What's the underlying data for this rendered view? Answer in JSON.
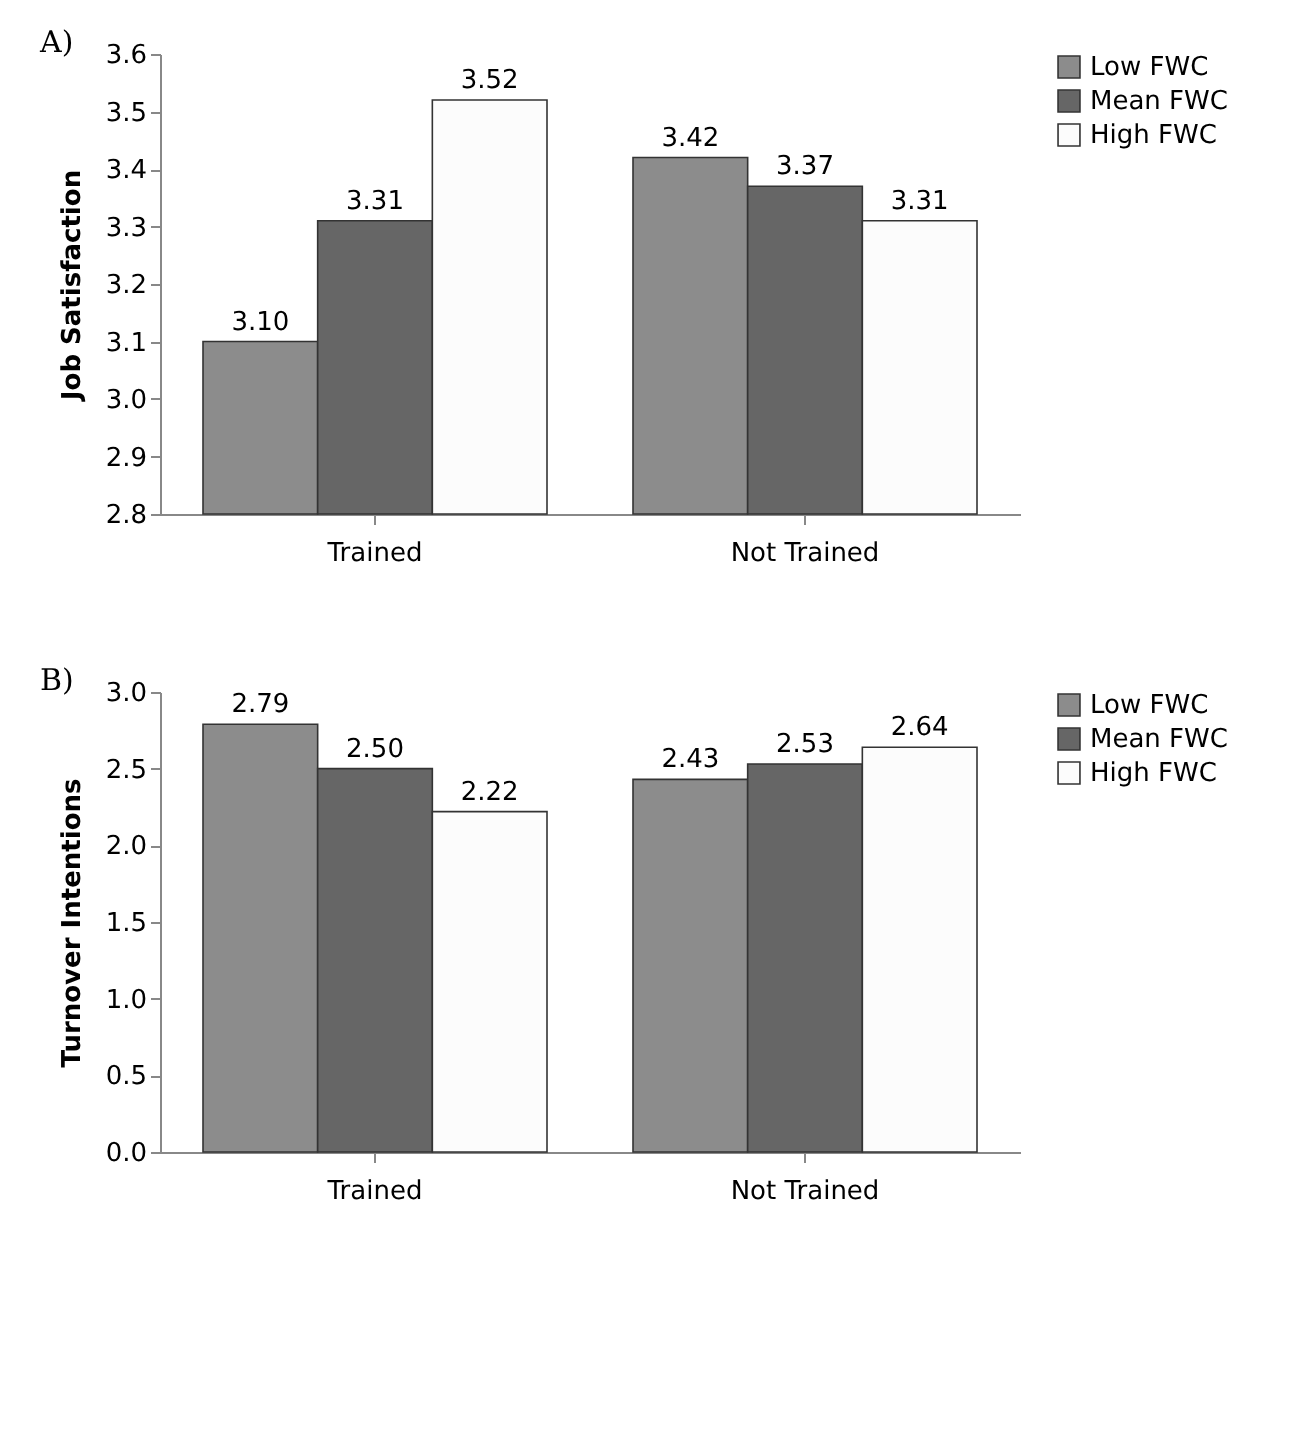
{
  "chart_data": [
    {
      "type": "bar",
      "title": "A)",
      "ylabel": "Job Satisfaction",
      "categories": [
        "Trained",
        "Not Trained"
      ],
      "ylim": [
        2.8,
        3.6
      ],
      "yticks": [
        2.8,
        2.9,
        {
          "value": 3,
          "label": "3.0"
        },
        3.1,
        3.2,
        3.3,
        3.4,
        3.5,
        3.6
      ],
      "legend": "right",
      "series": [
        {
          "name": "Low FWC",
          "color": "#8c8c8c",
          "values": [
            3.1,
            3.42
          ],
          "value_labels": [
            "3.10",
            "3.42"
          ]
        },
        {
          "name": "Mean FWC",
          "color": "#666666",
          "values": [
            3.31,
            3.37
          ],
          "value_labels": [
            "3.31",
            "3.37"
          ]
        },
        {
          "name": "High FWC",
          "color": "#fcfcfc",
          "values": [
            3.52,
            3.31
          ],
          "value_labels": [
            "3.52",
            "3.31"
          ]
        }
      ]
    },
    {
      "type": "bar",
      "title": "B)",
      "ylabel": "Turnover Intentions",
      "categories": [
        "Trained",
        "Not Trained"
      ],
      "ylim": [
        0,
        3
      ],
      "yticks": [
        {
          "value": 0,
          "label": "0.0"
        },
        0.5,
        {
          "value": 1,
          "label": "1.0"
        },
        1.5,
        {
          "value": 2,
          "label": "2.0"
        },
        2.5,
        {
          "value": 3,
          "label": "3.0"
        }
      ],
      "legend": "right",
      "series": [
        {
          "name": "Low FWC",
          "color": "#8c8c8c",
          "values": [
            2.79,
            2.43
          ],
          "value_labels": [
            "2.79",
            "2.43"
          ]
        },
        {
          "name": "Mean FWC",
          "color": "#666666",
          "values": [
            2.5,
            2.53
          ],
          "value_labels": [
            "2.50",
            "2.53"
          ]
        },
        {
          "name": "High FWC",
          "color": "#fcfcfc",
          "values": [
            2.22,
            2.64
          ],
          "value_labels": [
            "2.22",
            "2.64"
          ]
        }
      ]
    }
  ]
}
